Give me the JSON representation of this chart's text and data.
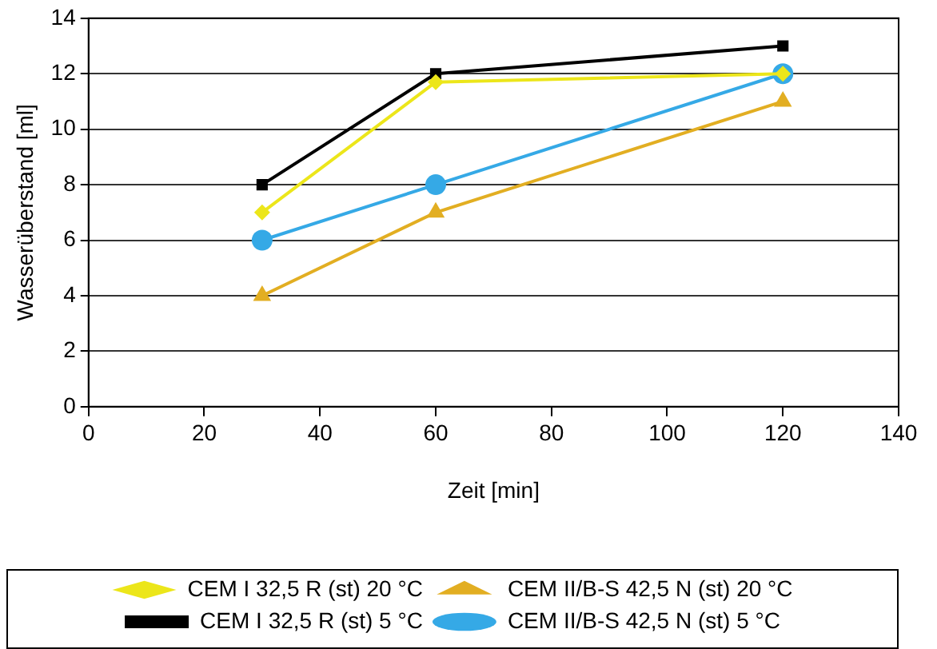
{
  "chart_data": {
    "type": "line",
    "xlabel": "Zeit [min]",
    "ylabel": "Wasserüberstand [ml]",
    "xlim": [
      0,
      140
    ],
    "xticks": [
      0,
      20,
      40,
      60,
      80,
      100,
      120,
      140
    ],
    "ylim": [
      0,
      14
    ],
    "yticks": [
      0,
      2,
      4,
      6,
      8,
      10,
      12,
      14
    ],
    "grid": "y",
    "legend": "bottom",
    "line_style": "solid",
    "x": [
      30,
      60,
      120
    ],
    "series": [
      {
        "name": "CEM I 32,5 R (st) 20 °C",
        "color": "#ece61a",
        "marker": "diamond",
        "values": [
          7,
          11.7,
          12
        ]
      },
      {
        "name": "CEM II/B-S 42,5 N (st) 20 °C",
        "color": "#e2ae22",
        "marker": "triangle",
        "values": [
          4,
          7,
          11
        ]
      },
      {
        "name": "CEM I 32,5 R (st) 5 °C",
        "color": "#000000",
        "marker": "square",
        "values": [
          8,
          12,
          13
        ]
      },
      {
        "name": "CEM II/B-S 42,5 N (st) 5 °C",
        "color": "#35a9e6",
        "marker": "circle",
        "values": [
          6,
          8,
          12
        ]
      }
    ]
  }
}
